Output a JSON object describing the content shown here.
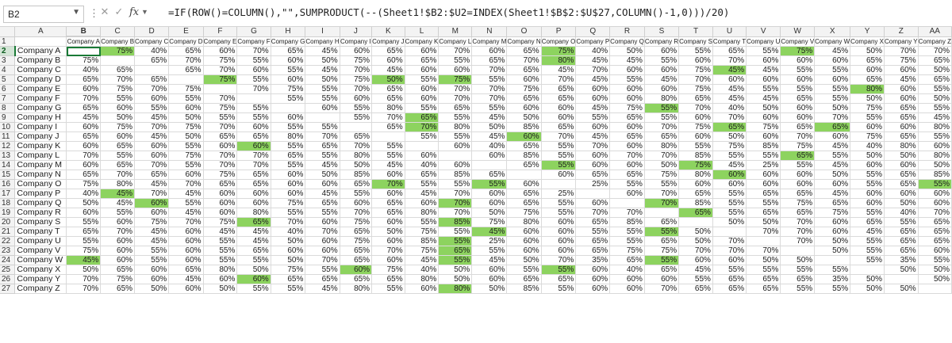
{
  "formula_bar": {
    "name_box": "B2",
    "fx_label": "fx",
    "formula": "=IF(ROW()=COLUMN(),\"\",SUMPRODUCT(--(Sheet1!$B2:$U2=INDEX(Sheet1!$B$2:$U$27,COLUMN()-1,0)))/20)",
    "icons": [
      "chevron-down-icon",
      "more-options-icon",
      "cancel-icon",
      "enter-icon",
      "fx-icon"
    ]
  },
  "sheet": {
    "active_cell": "B2",
    "column_letters": [
      "A",
      "B",
      "C",
      "D",
      "E",
      "F",
      "G",
      "H",
      "I",
      "J",
      "K",
      "L",
      "M",
      "N",
      "O",
      "P",
      "Q",
      "R",
      "S",
      "T",
      "U",
      "V",
      "W",
      "X",
      "Y",
      "Z",
      "AA"
    ],
    "header_row": [
      "Company A",
      "Company B",
      "Company C",
      "Company D",
      "Company E",
      "Company F",
      "Company G",
      "Company H",
      "Company I",
      "Company J",
      "Company K",
      "Company L",
      "Company M",
      "Company N",
      "Company O",
      "Company P",
      "Company Q",
      "Company R",
      "Company S",
      "Company T",
      "Company U",
      "Company V",
      "Company W",
      "Company X",
      "Company Y",
      "Company Z"
    ],
    "colors": {
      "highlight": "#8dd35f",
      "selected_header": "#d3e5d6",
      "selection_border": "#1a7a36"
    },
    "highlighted_cells": [
      [
        0,
        1
      ],
      [
        0,
        14
      ],
      [
        0,
        21
      ],
      [
        1,
        14
      ],
      [
        2,
        19
      ],
      [
        3,
        4
      ],
      [
        3,
        9
      ],
      [
        3,
        11
      ],
      [
        4,
        23
      ],
      [
        6,
        17
      ],
      [
        7,
        10
      ],
      [
        8,
        10
      ],
      [
        8,
        19
      ],
      [
        8,
        22
      ],
      [
        9,
        13
      ],
      [
        10,
        5
      ],
      [
        11,
        21
      ],
      [
        12,
        14
      ],
      [
        12,
        18
      ],
      [
        13,
        19
      ],
      [
        14,
        9
      ],
      [
        14,
        12
      ],
      [
        14,
        25
      ],
      [
        15,
        1
      ],
      [
        16,
        2
      ],
      [
        16,
        11
      ],
      [
        16,
        17
      ],
      [
        17,
        18
      ],
      [
        18,
        5
      ],
      [
        18,
        11
      ],
      [
        19,
        17
      ],
      [
        19,
        12
      ],
      [
        20,
        11
      ],
      [
        21,
        11
      ],
      [
        22,
        0
      ],
      [
        22,
        11
      ],
      [
        22,
        17
      ],
      [
        23,
        8
      ],
      [
        23,
        14
      ],
      [
        24,
        5
      ],
      [
        25,
        11
      ],
      [
        26,
        14
      ]
    ],
    "rows": [
      {
        "num": "2",
        "name": "Company A",
        "cells": [
          "",
          "75%",
          "40%",
          "65%",
          "60%",
          "70%",
          "65%",
          "45%",
          "60%",
          "65%",
          "60%",
          "70%",
          "60%",
          "65%",
          "75%",
          "40%",
          "50%",
          "60%",
          "55%",
          "65%",
          "55%",
          "75%",
          "45%",
          "50%",
          "70%",
          "70%"
        ]
      },
      {
        "num": "3",
        "name": "Company B",
        "cells": [
          "75%",
          "",
          "65%",
          "70%",
          "75%",
          "55%",
          "60%",
          "50%",
          "75%",
          "60%",
          "65%",
          "55%",
          "65%",
          "70%",
          "80%",
          "45%",
          "45%",
          "55%",
          "60%",
          "70%",
          "60%",
          "60%",
          "60%",
          "65%",
          "75%",
          "65%"
        ]
      },
      {
        "num": "4",
        "name": "Company C",
        "cells": [
          "40%",
          "65%",
          "",
          "65%",
          "70%",
          "60%",
          "55%",
          "45%",
          "70%",
          "45%",
          "60%",
          "60%",
          "70%",
          "65%",
          "45%",
          "70%",
          "60%",
          "60%",
          "75%",
          "45%",
          "45%",
          "55%",
          "55%",
          "60%",
          "60%",
          "50%"
        ]
      },
      {
        "num": "5",
        "name": "Company D",
        "cells": [
          "65%",
          "70%",
          "65%",
          "",
          "75%",
          "55%",
          "60%",
          "50%",
          "75%",
          "50%",
          "55%",
          "75%",
          "55%",
          "60%",
          "70%",
          "45%",
          "55%",
          "45%",
          "70%",
          "60%",
          "60%",
          "60%",
          "60%",
          "65%",
          "45%",
          "65%"
        ]
      },
      {
        "num": "6",
        "name": "Company E",
        "cells": [
          "60%",
          "75%",
          "70%",
          "75%",
          "",
          "70%",
          "75%",
          "55%",
          "70%",
          "65%",
          "60%",
          "70%",
          "70%",
          "75%",
          "65%",
          "60%",
          "60%",
          "60%",
          "75%",
          "45%",
          "55%",
          "55%",
          "55%",
          "80%",
          "60%",
          "55%"
        ]
      },
      {
        "num": "7",
        "name": "Company F",
        "cells": [
          "70%",
          "55%",
          "60%",
          "55%",
          "70%",
          "",
          "55%",
          "55%",
          "60%",
          "65%",
          "60%",
          "70%",
          "70%",
          "65%",
          "65%",
          "60%",
          "60%",
          "80%",
          "65%",
          "45%",
          "45%",
          "65%",
          "55%",
          "50%",
          "60%",
          "50%"
        ]
      },
      {
        "num": "8",
        "name": "Company G",
        "cells": [
          "65%",
          "60%",
          "55%",
          "60%",
          "75%",
          "55%",
          "",
          "60%",
          "55%",
          "80%",
          "55%",
          "65%",
          "55%",
          "60%",
          "60%",
          "45%",
          "75%",
          "55%",
          "70%",
          "40%",
          "50%",
          "60%",
          "50%",
          "75%",
          "65%",
          "55%"
        ]
      },
      {
        "num": "9",
        "name": "Company H",
        "cells": [
          "45%",
          "50%",
          "45%",
          "50%",
          "55%",
          "55%",
          "60%",
          "",
          "55%",
          "70%",
          "65%",
          "55%",
          "45%",
          "50%",
          "60%",
          "55%",
          "65%",
          "55%",
          "60%",
          "70%",
          "60%",
          "60%",
          "70%",
          "55%",
          "65%",
          "45%"
        ]
      },
      {
        "num": "10",
        "name": "Company I",
        "cells": [
          "60%",
          "75%",
          "70%",
          "75%",
          "70%",
          "60%",
          "55%",
          "55%",
          "",
          "65%",
          "70%",
          "80%",
          "50%",
          "85%",
          "65%",
          "60%",
          "60%",
          "70%",
          "75%",
          "65%",
          "75%",
          "65%",
          "65%",
          "60%",
          "60%",
          "80%"
        ]
      },
      {
        "num": "11",
        "name": "Company J",
        "cells": [
          "65%",
          "60%",
          "45%",
          "50%",
          "65%",
          "65%",
          "80%",
          "70%",
          "65%",
          "",
          "55%",
          "55%",
          "45%",
          "60%",
          "70%",
          "45%",
          "65%",
          "65%",
          "60%",
          "50%",
          "60%",
          "70%",
          "60%",
          "75%",
          "65%",
          "55%"
        ]
      },
      {
        "num": "12",
        "name": "Company K",
        "cells": [
          "60%",
          "65%",
          "60%",
          "55%",
          "60%",
          "60%",
          "55%",
          "65%",
          "70%",
          "55%",
          "",
          "60%",
          "40%",
          "65%",
          "55%",
          "70%",
          "60%",
          "80%",
          "55%",
          "75%",
          "85%",
          "75%",
          "45%",
          "40%",
          "80%",
          "60%"
        ]
      },
      {
        "num": "13",
        "name": "Company L",
        "cells": [
          "70%",
          "55%",
          "60%",
          "75%",
          "70%",
          "70%",
          "65%",
          "55%",
          "80%",
          "55%",
          "60%",
          "",
          "60%",
          "85%",
          "55%",
          "60%",
          "70%",
          "70%",
          "85%",
          "55%",
          "55%",
          "65%",
          "55%",
          "50%",
          "50%",
          "80%"
        ]
      },
      {
        "num": "14",
        "name": "Company M",
        "cells": [
          "60%",
          "65%",
          "70%",
          "55%",
          "70%",
          "70%",
          "55%",
          "45%",
          "50%",
          "45%",
          "40%",
          "60%",
          "",
          "65%",
          "55%",
          "60%",
          "60%",
          "50%",
          "75%",
          "45%",
          "25%",
          "55%",
          "45%",
          "60%",
          "60%",
          "50%"
        ]
      },
      {
        "num": "15",
        "name": "Company N",
        "cells": [
          "65%",
          "70%",
          "65%",
          "60%",
          "75%",
          "65%",
          "60%",
          "50%",
          "85%",
          "60%",
          "65%",
          "85%",
          "65%",
          "",
          "60%",
          "65%",
          "65%",
          "75%",
          "80%",
          "60%",
          "60%",
          "60%",
          "50%",
          "55%",
          "65%",
          "85%"
        ]
      },
      {
        "num": "16",
        "name": "Company O",
        "cells": [
          "75%",
          "80%",
          "45%",
          "70%",
          "65%",
          "65%",
          "60%",
          "60%",
          "65%",
          "70%",
          "55%",
          "55%",
          "55%",
          "60%",
          "",
          "25%",
          "55%",
          "55%",
          "60%",
          "60%",
          "60%",
          "60%",
          "60%",
          "55%",
          "65%",
          "55%"
        ]
      },
      {
        "num": "17",
        "name": "Company P",
        "cells": [
          "40%",
          "45%",
          "70%",
          "45%",
          "60%",
          "60%",
          "60%",
          "45%",
          "55%",
          "60%",
          "45%",
          "70%",
          "60%",
          "65%",
          "25%",
          "",
          "60%",
          "70%",
          "65%",
          "55%",
          "65%",
          "65%",
          "45%",
          "60%",
          "60%",
          "60%"
        ]
      },
      {
        "num": "18",
        "name": "Company Q",
        "cells": [
          "50%",
          "45%",
          "60%",
          "55%",
          "60%",
          "60%",
          "75%",
          "65%",
          "60%",
          "65%",
          "60%",
          "70%",
          "60%",
          "65%",
          "55%",
          "60%",
          "",
          "70%",
          "85%",
          "55%",
          "55%",
          "75%",
          "65%",
          "60%",
          "50%",
          "60%"
        ]
      },
      {
        "num": "19",
        "name": "Company R",
        "cells": [
          "60%",
          "55%",
          "60%",
          "45%",
          "60%",
          "80%",
          "55%",
          "55%",
          "70%",
          "65%",
          "80%",
          "70%",
          "50%",
          "75%",
          "55%",
          "70%",
          "70%",
          "",
          "65%",
          "55%",
          "65%",
          "65%",
          "75%",
          "55%",
          "40%",
          "70%"
        ]
      },
      {
        "num": "20",
        "name": "Company S",
        "cells": [
          "55%",
          "60%",
          "75%",
          "70%",
          "75%",
          "65%",
          "70%",
          "60%",
          "75%",
          "60%",
          "55%",
          "85%",
          "75%",
          "80%",
          "60%",
          "65%",
          "85%",
          "65%",
          "",
          "50%",
          "50%",
          "70%",
          "60%",
          "65%",
          "55%",
          "65%"
        ]
      },
      {
        "num": "21",
        "name": "Company T",
        "cells": [
          "65%",
          "70%",
          "45%",
          "60%",
          "45%",
          "45%",
          "40%",
          "70%",
          "65%",
          "50%",
          "75%",
          "55%",
          "45%",
          "60%",
          "60%",
          "55%",
          "55%",
          "55%",
          "50%",
          "",
          "70%",
          "70%",
          "60%",
          "45%",
          "65%",
          "65%"
        ]
      },
      {
        "num": "22",
        "name": "Company U",
        "cells": [
          "55%",
          "60%",
          "45%",
          "60%",
          "55%",
          "45%",
          "50%",
          "60%",
          "75%",
          "60%",
          "85%",
          "55%",
          "25%",
          "60%",
          "60%",
          "65%",
          "55%",
          "65%",
          "50%",
          "70%",
          "",
          "70%",
          "50%",
          "55%",
          "65%",
          "65%"
        ]
      },
      {
        "num": "23",
        "name": "Company V",
        "cells": [
          "75%",
          "60%",
          "55%",
          "60%",
          "55%",
          "65%",
          "60%",
          "60%",
          "65%",
          "70%",
          "75%",
          "65%",
          "55%",
          "60%",
          "60%",
          "65%",
          "75%",
          "75%",
          "70%",
          "70%",
          "70%",
          "",
          "50%",
          "55%",
          "65%",
          "60%"
        ]
      },
      {
        "num": "24",
        "name": "Company W",
        "cells": [
          "45%",
          "60%",
          "55%",
          "60%",
          "55%",
          "55%",
          "50%",
          "70%",
          "65%",
          "60%",
          "45%",
          "55%",
          "45%",
          "50%",
          "70%",
          "35%",
          "65%",
          "55%",
          "60%",
          "60%",
          "50%",
          "50%",
          "",
          "55%",
          "35%",
          "55%"
        ]
      },
      {
        "num": "25",
        "name": "Company X",
        "cells": [
          "50%",
          "65%",
          "60%",
          "65%",
          "80%",
          "50%",
          "75%",
          "55%",
          "60%",
          "75%",
          "40%",
          "50%",
          "60%",
          "55%",
          "55%",
          "60%",
          "40%",
          "65%",
          "45%",
          "55%",
          "55%",
          "55%",
          "55%",
          "",
          "50%",
          "50%"
        ]
      },
      {
        "num": "26",
        "name": "Company Y",
        "cells": [
          "70%",
          "75%",
          "60%",
          "45%",
          "60%",
          "60%",
          "65%",
          "65%",
          "65%",
          "65%",
          "80%",
          "50%",
          "60%",
          "65%",
          "65%",
          "60%",
          "60%",
          "60%",
          "55%",
          "65%",
          "65%",
          "65%",
          "35%",
          "50%",
          "",
          "50%"
        ]
      },
      {
        "num": "27",
        "name": "Company Z",
        "cells": [
          "70%",
          "65%",
          "50%",
          "60%",
          "50%",
          "55%",
          "55%",
          "45%",
          "80%",
          "55%",
          "60%",
          "80%",
          "50%",
          "85%",
          "55%",
          "60%",
          "60%",
          "70%",
          "65%",
          "65%",
          "65%",
          "55%",
          "55%",
          "50%",
          "50%",
          ""
        ]
      }
    ]
  }
}
